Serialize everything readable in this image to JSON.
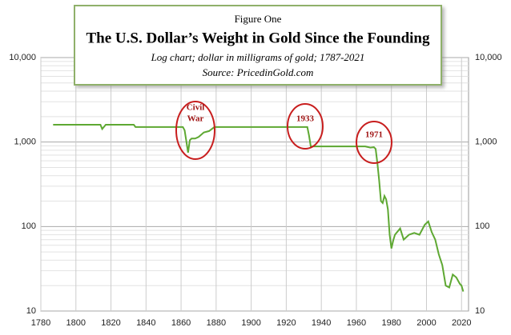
{
  "chart_data": {
    "type": "line",
    "figure_label": "Figure One",
    "title": "The U.S. Dollar’s Weight in Gold Since the Founding",
    "subtitle": "Log chart; dollar in milligrams of gold; 1787-2021",
    "source": "Source: PricedinGold.com",
    "log_y": true,
    "grid": true,
    "xlim": [
      1780,
      2024
    ],
    "xticks": [
      1780,
      1800,
      1820,
      1840,
      1860,
      1880,
      1900,
      1920,
      1940,
      1960,
      1980,
      2000,
      2020
    ],
    "ylim": [
      10,
      10000
    ],
    "yticks": [
      {
        "value": 10,
        "label": "10"
      },
      {
        "value": 100,
        "label": "100"
      },
      {
        "value": 1000,
        "label": "1,000"
      },
      {
        "value": 10000,
        "label": "10,000"
      }
    ],
    "yminorticks": [
      20,
      30,
      40,
      50,
      60,
      70,
      80,
      90,
      200,
      300,
      400,
      500,
      600,
      700,
      800,
      900,
      2000,
      3000,
      4000,
      5000,
      6000,
      7000,
      8000,
      9000
    ],
    "series": [
      {
        "color": "#5ea832",
        "x": [
          1787,
          1810,
          1814,
          1815,
          1817,
          1833,
          1834,
          1837,
          1860,
          1861,
          1862,
          1863,
          1864,
          1865,
          1866,
          1868,
          1870,
          1873,
          1876,
          1878,
          1879,
          1900,
          1932,
          1933,
          1934,
          1935,
          1960,
          1965,
          1968,
          1970,
          1971,
          1972,
          1973,
          1974,
          1975,
          1976,
          1977,
          1978,
          1979,
          1980,
          1981,
          1982,
          1985,
          1987,
          1990,
          1993,
          1996,
          1999,
          2001,
          2003,
          2005,
          2007,
          2009,
          2011,
          2013,
          2015,
          2017,
          2019,
          2020,
          2021
        ],
        "values": [
          1604,
          1604,
          1604,
          1430,
          1604,
          1604,
          1505,
          1505,
          1505,
          1505,
          1380,
          1030,
          750,
          1050,
          1100,
          1100,
          1150,
          1300,
          1350,
          1450,
          1505,
          1505,
          1505,
          1200,
          889,
          889,
          889,
          889,
          860,
          870,
          830,
          560,
          350,
          200,
          190,
          230,
          210,
          160,
          80,
          55,
          68,
          80,
          95,
          70,
          80,
          84,
          80,
          105,
          115,
          86,
          70,
          47,
          35,
          20,
          19,
          27,
          25,
          21,
          20,
          17
        ]
      }
    ],
    "annotations": [
      {
        "lines": [
          "Civil",
          "War"
        ]
      },
      {
        "lines": [
          "1933"
        ]
      },
      {
        "lines": [
          "1971"
        ]
      }
    ]
  }
}
